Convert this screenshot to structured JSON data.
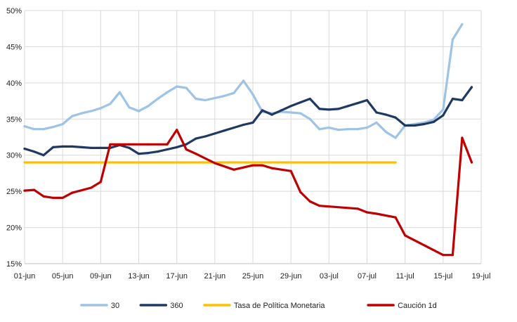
{
  "chart_data": {
    "type": "line",
    "x_ticks": [
      "01-jun",
      "05-jun",
      "09-jun",
      "13-jun",
      "17-jun",
      "21-jun",
      "25-jun",
      "29-jun",
      "03-jul",
      "07-jul",
      "11-jul",
      "15-jul",
      "19-jul"
    ],
    "x_range_days": [
      0,
      48
    ],
    "y_ticks": [
      "15%",
      "20%",
      "25%",
      "30%",
      "35%",
      "40%",
      "45%",
      "50%"
    ],
    "ylim": [
      15,
      50
    ],
    "grid": true,
    "legend_position": "bottom",
    "series": [
      {
        "name": "30",
        "color": "#9dc3e6",
        "x": [
          "01-jun",
          "02-jun",
          "03-jun",
          "04-jun",
          "05-jun",
          "06-jun",
          "07-jun",
          "08-jun",
          "09-jun",
          "10-jun",
          "11-jun",
          "12-jun",
          "13-jun",
          "14-jun",
          "15-jun",
          "16-jun",
          "17-jun",
          "18-jun",
          "19-jun",
          "20-jun",
          "21-jun",
          "22-jun",
          "23-jun",
          "24-jun",
          "25-jun",
          "26-jun",
          "27-jun",
          "28-jun",
          "29-jun",
          "30-jun",
          "01-jul",
          "02-jul",
          "03-jul",
          "04-jul",
          "05-jul",
          "06-jul",
          "07-jul",
          "08-jul",
          "09-jul",
          "10-jul",
          "11-jul",
          "12-jul",
          "13-jul",
          "14-jul",
          "15-jul",
          "16-jul",
          "17-jul"
        ],
        "values": [
          34,
          33.6,
          33.6,
          33.9,
          34.3,
          35.4,
          35.8,
          36.1,
          36.5,
          37.1,
          38.7,
          36.6,
          36.1,
          36.8,
          37.8,
          38.7,
          39.5,
          39.3,
          37.8,
          37.6,
          37.9,
          38.2,
          38.6,
          40.3,
          38.4,
          36,
          35.8,
          36,
          35.9,
          35.8,
          35,
          33.6,
          33.8,
          33.5,
          33.6,
          33.6,
          33.8,
          34.5,
          33.2,
          32.4,
          34.1,
          34.3,
          34.5,
          34.9,
          36.3,
          46,
          48.1
        ]
      },
      {
        "name": "360",
        "color": "#1f3864",
        "x": [
          "01-jun",
          "02-jun",
          "03-jun",
          "04-jun",
          "05-jun",
          "06-jun",
          "07-jun",
          "08-jun",
          "09-jun",
          "10-jun",
          "11-jun",
          "12-jun",
          "13-jun",
          "14-jun",
          "15-jun",
          "16-jun",
          "17-jun",
          "18-jun",
          "19-jun",
          "20-jun",
          "21-jun",
          "22-jun",
          "23-jun",
          "24-jun",
          "25-jun",
          "26-jun",
          "27-jun",
          "28-jun",
          "29-jun",
          "30-jun",
          "01-jul",
          "02-jul",
          "03-jul",
          "04-jul",
          "05-jul",
          "06-jul",
          "07-jul",
          "08-jul",
          "09-jul",
          "10-jul",
          "11-jul",
          "12-jul",
          "13-jul",
          "14-jul",
          "15-jul",
          "16-jul",
          "17-jul",
          "18-jul"
        ],
        "values": [
          30.9,
          30.5,
          30,
          31.1,
          31.2,
          31.2,
          31.1,
          31,
          31,
          31,
          31.4,
          31,
          30.2,
          30.3,
          30.5,
          30.8,
          31.1,
          31.5,
          32.3,
          32.6,
          33,
          33.4,
          33.8,
          34.2,
          34.5,
          36.2,
          35.6,
          36.2,
          36.8,
          37.3,
          37.8,
          36.4,
          36.3,
          36.4,
          36.8,
          37.2,
          37.6,
          35.9,
          35.6,
          35.2,
          34.1,
          34.1,
          34.3,
          34.6,
          35.5,
          37.8,
          37.6,
          39.4
        ]
      },
      {
        "name": "Tasa de Política Monetaria",
        "color": "#ffc000",
        "x": [
          "01-jun",
          "10-jul"
        ],
        "values": [
          29,
          29
        ]
      },
      {
        "name": "Caución 1d",
        "color": "#c00000",
        "x": [
          "01-jun",
          "02-jun",
          "03-jun",
          "04-jun",
          "05-jun",
          "06-jun",
          "08-jun",
          "09-jun",
          "10-jun",
          "11-jun",
          "12-jun",
          "14-jun",
          "16-jun",
          "17-jun",
          "18-jun",
          "19-jun",
          "21-jun",
          "23-jun",
          "24-jun",
          "25-jun",
          "26-jun",
          "27-jun",
          "29-jun",
          "30-jun",
          "01-jul",
          "02-jul",
          "03-jul",
          "06-jul",
          "07-jul",
          "08-jul",
          "10-jul",
          "11-jul",
          "15-jul",
          "16-jul",
          "17-jul",
          "18-jul"
        ],
        "values": [
          25.1,
          25.2,
          24.3,
          24.1,
          24.1,
          24.8,
          25.5,
          26.3,
          31.5,
          31.5,
          31.5,
          31.5,
          31.5,
          33.5,
          30.8,
          30.2,
          28.9,
          28,
          28.3,
          28.6,
          28.6,
          28.2,
          27.8,
          24.9,
          23.6,
          23,
          22.9,
          22.6,
          22.1,
          21.9,
          21.4,
          18.9,
          16.2,
          16.2,
          32.4,
          29
        ]
      }
    ]
  }
}
